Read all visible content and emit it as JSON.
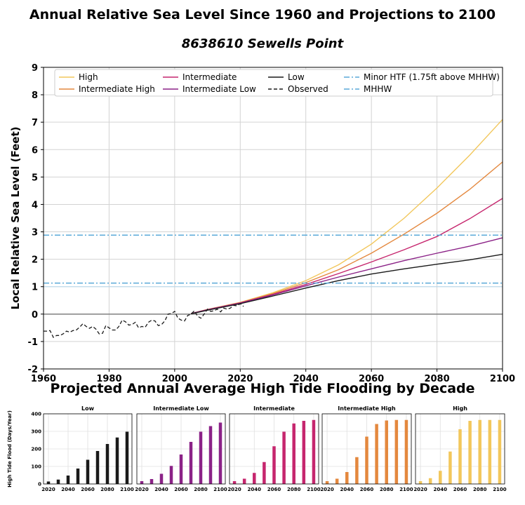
{
  "title": "Annual Relative Sea Level Since 1960 and Projections to 2100",
  "subtitle": "8638610 Sewells Point",
  "bar_section_title": "Projected Annual Average High Tide Flooding by Decade",
  "colors": {
    "High": "#f2c75c",
    "Intermediate High": "#e4883e",
    "Intermediate": "#c6266e",
    "Intermediate Low": "#8b2287",
    "Low": "#1a1a1a",
    "Observed": "#1a1a1a",
    "threshold": "#5aa9d8",
    "zero_line": "#808080"
  },
  "chart_data": [
    {
      "type": "line",
      "ylabel": "Local Relative Sea Level (Feet)",
      "xlabel": "",
      "xlim": [
        1960,
        2100
      ],
      "ylim": [
        -2,
        9
      ],
      "xticks": [
        1960,
        1980,
        2000,
        2020,
        2040,
        2060,
        2080,
        2100
      ],
      "yticks": [
        -2,
        -1,
        0,
        1,
        2,
        3,
        4,
        5,
        6,
        7,
        8,
        9
      ],
      "grid": true,
      "legend_position": "top",
      "legend": [
        "High",
        "Intermediate High",
        "Intermediate",
        "Intermediate Low",
        "Low",
        "Observed",
        "Minor HTF (1.75ft above MHHW)",
        "MHHW"
      ],
      "series": [
        {
          "name": "High",
          "style": "solid",
          "x": [
            2005,
            2010,
            2020,
            2030,
            2040,
            2050,
            2060,
            2070,
            2080,
            2090,
            2100
          ],
          "y": [
            0.02,
            0.17,
            0.43,
            0.78,
            1.22,
            1.8,
            2.55,
            3.5,
            4.6,
            5.8,
            7.1
          ]
        },
        {
          "name": "Intermediate High",
          "style": "solid",
          "x": [
            2005,
            2010,
            2020,
            2030,
            2040,
            2050,
            2060,
            2070,
            2080,
            2090,
            2100
          ],
          "y": [
            0.02,
            0.17,
            0.42,
            0.75,
            1.15,
            1.62,
            2.22,
            2.92,
            3.68,
            4.55,
            5.55
          ]
        },
        {
          "name": "Intermediate",
          "style": "solid",
          "x": [
            2005,
            2010,
            2020,
            2030,
            2040,
            2050,
            2060,
            2070,
            2080,
            2090,
            2100
          ],
          "y": [
            0.02,
            0.16,
            0.41,
            0.72,
            1.08,
            1.48,
            1.9,
            2.35,
            2.83,
            3.48,
            4.22
          ]
        },
        {
          "name": "Intermediate Low",
          "style": "solid",
          "x": [
            2005,
            2010,
            2020,
            2030,
            2040,
            2050,
            2060,
            2070,
            2080,
            2090,
            2100
          ],
          "y": [
            0.02,
            0.16,
            0.4,
            0.7,
            1.03,
            1.35,
            1.65,
            1.95,
            2.22,
            2.48,
            2.78
          ]
        },
        {
          "name": "Low",
          "style": "solid",
          "x": [
            2005,
            2010,
            2020,
            2030,
            2040,
            2050,
            2060,
            2070,
            2080,
            2090,
            2100
          ],
          "y": [
            0.01,
            0.14,
            0.38,
            0.66,
            0.95,
            1.22,
            1.46,
            1.65,
            1.82,
            1.98,
            2.18
          ]
        },
        {
          "name": "Observed",
          "style": "dashed",
          "x": [
            1960,
            1961,
            1962,
            1963,
            1964,
            1965,
            1966,
            1967,
            1968,
            1969,
            1970,
            1971,
            1972,
            1973,
            1974,
            1975,
            1976,
            1977,
            1978,
            1979,
            1980,
            1981,
            1982,
            1983,
            1984,
            1985,
            1986,
            1987,
            1988,
            1989,
            1990,
            1991,
            1992,
            1993,
            1994,
            1995,
            1996,
            1997,
            1998,
            1999,
            2000,
            2001,
            2002,
            2003,
            2004,
            2005,
            2006,
            2007,
            2008,
            2009,
            2010,
            2011,
            2012,
            2013,
            2014,
            2015,
            2016,
            2017,
            2018,
            2019,
            2020,
            2021
          ],
          "y": [
            -0.62,
            -0.62,
            -0.6,
            -0.85,
            -0.78,
            -0.78,
            -0.72,
            -0.62,
            -0.66,
            -0.6,
            -0.58,
            -0.48,
            -0.35,
            -0.45,
            -0.52,
            -0.45,
            -0.55,
            -0.72,
            -0.7,
            -0.42,
            -0.5,
            -0.58,
            -0.58,
            -0.45,
            -0.22,
            -0.28,
            -0.4,
            -0.38,
            -0.3,
            -0.5,
            -0.45,
            -0.48,
            -0.3,
            -0.22,
            -0.25,
            -0.42,
            -0.38,
            -0.25,
            0.0,
            0.02,
            0.1,
            -0.15,
            -0.22,
            -0.25,
            -0.05,
            0.0,
            0.12,
            -0.08,
            -0.15,
            0.0,
            0.18,
            0.1,
            0.12,
            0.18,
            0.08,
            0.22,
            0.18,
            0.22,
            0.32,
            0.3,
            0.38,
            0.28
          ]
        },
        {
          "name": "Minor HTF (1.75ft above MHHW)",
          "style": "dashdot",
          "x": [
            1960,
            2100
          ],
          "y": [
            2.88,
            2.88
          ]
        },
        {
          "name": "MHHW",
          "style": "dashdot",
          "x": [
            1960,
            2100
          ],
          "y": [
            1.13,
            1.13
          ]
        }
      ]
    },
    {
      "type": "bar",
      "title": "Low",
      "ylabel": "High Tide Flood (Days/Year)",
      "ylim": [
        0,
        400
      ],
      "yticks": [
        0,
        100,
        200,
        300,
        400
      ],
      "xticks": [
        2020,
        2040,
        2060,
        2080,
        2100
      ],
      "categories": [
        2020,
        2030,
        2040,
        2050,
        2060,
        2070,
        2080,
        2090,
        2100
      ],
      "values": [
        14,
        25,
        48,
        88,
        138,
        188,
        228,
        265,
        298
      ]
    },
    {
      "type": "bar",
      "title": "Intermediate Low",
      "ylim": [
        0,
        400
      ],
      "xticks": [
        2020,
        2040,
        2060,
        2080,
        2100
      ],
      "categories": [
        2020,
        2030,
        2040,
        2050,
        2060,
        2070,
        2080,
        2090,
        2100
      ],
      "values": [
        16,
        28,
        58,
        103,
        168,
        240,
        298,
        330,
        350
      ]
    },
    {
      "type": "bar",
      "title": "Intermediate",
      "ylim": [
        0,
        400
      ],
      "xticks": [
        2020,
        2040,
        2060,
        2080,
        2100
      ],
      "categories": [
        2020,
        2030,
        2040,
        2050,
        2060,
        2070,
        2080,
        2090,
        2100
      ],
      "values": [
        16,
        30,
        63,
        125,
        215,
        298,
        345,
        360,
        365
      ]
    },
    {
      "type": "bar",
      "title": "Intermediate High",
      "ylim": [
        0,
        400
      ],
      "xticks": [
        2020,
        2040,
        2060,
        2080,
        2100
      ],
      "categories": [
        2020,
        2030,
        2040,
        2050,
        2060,
        2070,
        2080,
        2090,
        2100
      ],
      "values": [
        16,
        30,
        68,
        153,
        270,
        342,
        362,
        365,
        365
      ]
    },
    {
      "type": "bar",
      "title": "High",
      "ylim": [
        0,
        400
      ],
      "xticks": [
        2020,
        2040,
        2060,
        2080,
        2100
      ],
      "categories": [
        2020,
        2030,
        2040,
        2050,
        2060,
        2070,
        2080,
        2090,
        2100
      ],
      "values": [
        16,
        33,
        75,
        185,
        312,
        360,
        365,
        365,
        365
      ]
    }
  ]
}
